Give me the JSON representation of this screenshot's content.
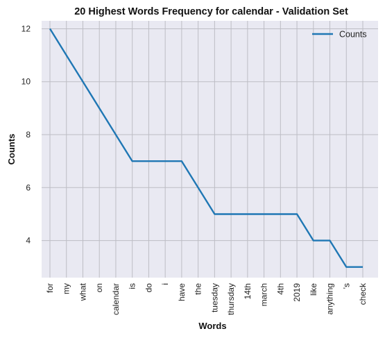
{
  "chart_data": {
    "type": "line",
    "title": "20 Highest Words Frequency for calendar - Validation Set",
    "xlabel": "Words",
    "ylabel": "Counts",
    "categories": [
      "for",
      "my",
      "what",
      "on",
      "calendar",
      "is",
      "do",
      "i",
      "have",
      "the",
      "tuesday",
      "thursday",
      "14th",
      "march",
      "4th",
      "2019",
      "like",
      "anything",
      "'s",
      "check"
    ],
    "series": [
      {
        "name": "Counts",
        "values": [
          12,
          11,
          10,
          9,
          8,
          7,
          7,
          7,
          7,
          6,
          5,
          5,
          5,
          5,
          5,
          5,
          4,
          4,
          3,
          3
        ],
        "color": "#1f77b4"
      }
    ],
    "ylim": [
      2.6,
      12.3
    ],
    "yticks": [
      "4",
      "6",
      "8",
      "10",
      "12"
    ],
    "grid": true,
    "legend": "top-right",
    "background": "#e9e9f2"
  }
}
